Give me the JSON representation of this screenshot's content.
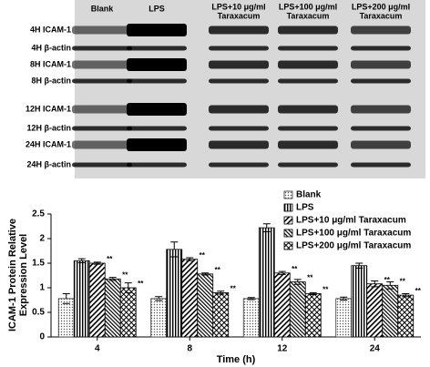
{
  "blot": {
    "lanes": [
      [
        "Blank"
      ],
      [
        "LPS"
      ],
      [
        "LPS+10 μg/ml",
        "Taraxacum"
      ],
      [
        "LPS+100 μg/ml",
        "Taraxacum"
      ],
      [
        "LPS+200 μg/ml",
        "Taraxacum"
      ]
    ],
    "rows": [
      "4H ICAM-1",
      "4H β-actin",
      "8H ICAM-1",
      "8H β-actin",
      "12H ICAM-1",
      "12H β-actin",
      "24H ICAM-1",
      "24H β-actin"
    ]
  },
  "chart_data": {
    "type": "bar",
    "y_label": [
      "ICAM-1 Protein Relative",
      "Expression Level"
    ],
    "x_label": "Time (h)",
    "categories": [
      "4",
      "8",
      "12",
      "24"
    ],
    "ylim": [
      0,
      2.5
    ],
    "yticks": [
      0,
      0.5,
      1,
      1.5,
      2,
      2.5
    ],
    "legend": "upper right",
    "series": [
      {
        "name": "Blank",
        "color": "#333333",
        "pattern": "dots",
        "values": [
          0.78,
          0.78,
          0.78,
          0.78
        ],
        "errors": [
          0.1,
          0.04,
          0.02,
          0.03
        ]
      },
      {
        "name": "LPS",
        "color": "#000000",
        "pattern": "vertical",
        "values": [
          1.55,
          1.78,
          2.22,
          1.45
        ],
        "errors": [
          0.04,
          0.15,
          0.08,
          0.05
        ]
      },
      {
        "name": "LPS+10 μg/ml Taraxacum",
        "color": "#000000",
        "pattern": "diagonal",
        "values": [
          1.5,
          1.58,
          1.3,
          1.08
        ],
        "errors": [
          0.02,
          0.03,
          0.03,
          0.06
        ],
        "significance": [
          "**",
          "**",
          "**",
          "**"
        ]
      },
      {
        "name": "LPS+100 μg/ml Taraxacum",
        "color": "#000000",
        "pattern": "backdiagonal",
        "values": [
          1.18,
          1.28,
          1.12,
          1.05
        ],
        "errors": [
          0.03,
          0.02,
          0.05,
          0.07
        ],
        "significance": [
          "**",
          "**",
          "**",
          "**"
        ]
      },
      {
        "name": "LPS+200 μg/ml Taraxacum",
        "color": "#000000",
        "pattern": "cross",
        "values": [
          1.0,
          0.9,
          0.88,
          0.85
        ],
        "errors": [
          0.1,
          0.03,
          0.02,
          0.03
        ],
        "significance": [
          "**",
          "**",
          "**",
          "**"
        ]
      }
    ]
  }
}
